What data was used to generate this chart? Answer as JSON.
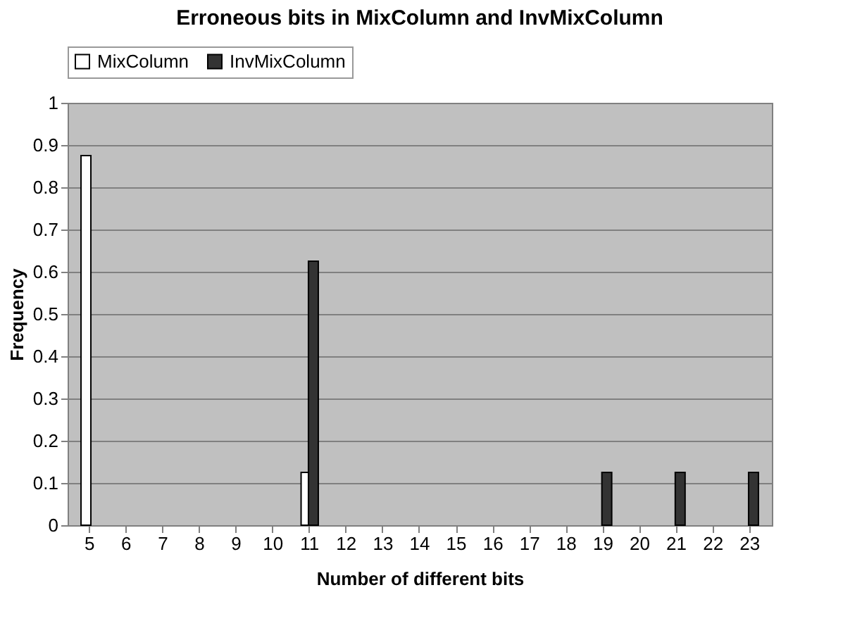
{
  "chart_data": {
    "type": "bar",
    "title": "Erroneous bits in MixColumn and InvMixColumn",
    "xlabel": "Number of different bits",
    "ylabel": "Frequency",
    "categories": [
      "5",
      "6",
      "7",
      "8",
      "9",
      "10",
      "11",
      "12",
      "13",
      "14",
      "15",
      "16",
      "17",
      "18",
      "19",
      "20",
      "21",
      "22",
      "23"
    ],
    "series": [
      {
        "name": "MixColumn",
        "color": "#ffffff",
        "values": [
          0.875,
          null,
          null,
          null,
          null,
          null,
          0.125,
          null,
          null,
          null,
          null,
          null,
          null,
          null,
          null,
          null,
          null,
          null,
          null
        ]
      },
      {
        "name": "InvMixColumn",
        "color": "#333333",
        "values": [
          null,
          null,
          null,
          null,
          null,
          null,
          0.625,
          null,
          null,
          null,
          null,
          null,
          null,
          null,
          0.125,
          null,
          0.125,
          null,
          0.125
        ]
      }
    ],
    "ylim": [
      0,
      1
    ],
    "yticks": [
      0,
      0.1,
      0.2,
      0.3,
      0.4,
      0.5,
      0.6,
      0.7,
      0.8,
      0.9,
      1
    ],
    "grid": "y",
    "legend": "top"
  }
}
